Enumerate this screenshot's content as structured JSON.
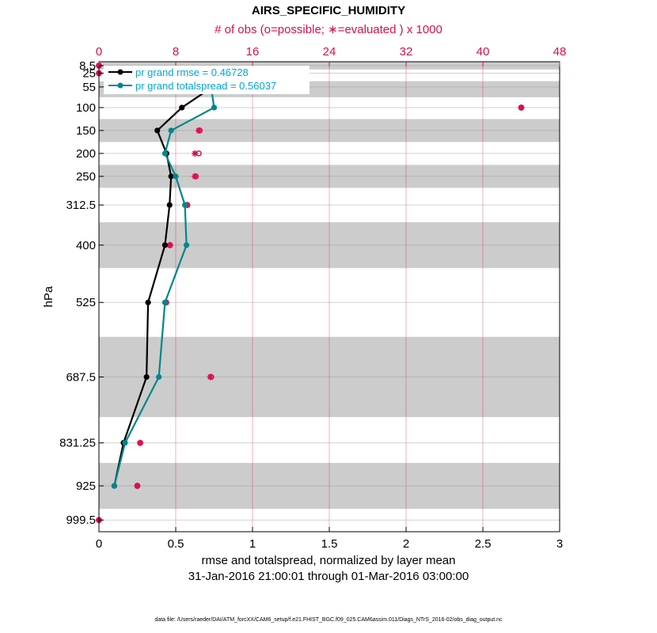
{
  "chart_data": {
    "type": "line",
    "title": "AIRS_SPECIFIC_HUMIDITY",
    "top_axis_label": "# of obs (o=possible; ∗=evaluated ) x 1000",
    "xlabel": "rmse and totalspread, normalized by layer mean",
    "xlabel2": "31-Jan-2016 21:00:01 through 01-Mar-2016 03:00:00",
    "ylabel": "hPa",
    "footnote": "data file: /Users/raeder/DAI/ATM_forcXX/CAM6_setup/f.e21.FHIST_BGC.f09_025.CAM6assim.011/Diags_NTrS_2016-02/obs_diag_output.nc",
    "xlim": [
      0,
      3
    ],
    "xticks": [
      0,
      0.5,
      1,
      1.5,
      2,
      2.5,
      3
    ],
    "xtick_labels": [
      "0",
      "0.5",
      "1",
      "1.5",
      "2",
      "2.5",
      "3"
    ],
    "top_xlim": [
      0,
      48
    ],
    "top_xticks": [
      0,
      8,
      16,
      24,
      32,
      40,
      48
    ],
    "top_xtick_labels": [
      "0",
      "8",
      "16",
      "24",
      "32",
      "40",
      "48"
    ],
    "y_levels": [
      8.5,
      25,
      55,
      100,
      150,
      200,
      250,
      312.5,
      400,
      525,
      687.5,
      831.25,
      925,
      999.5
    ],
    "ytick_labels": [
      "8.5",
      "25",
      "55",
      "100",
      "150",
      "200",
      "250",
      "312.5",
      "400",
      "525",
      "687.5",
      "831.25",
      "925",
      "999.5"
    ],
    "ylim": [
      0,
      1025
    ],
    "shaded_layers": [
      [
        0,
        17
      ],
      [
        42.5,
        77.5
      ],
      [
        125,
        175
      ],
      [
        225,
        275
      ],
      [
        350,
        450
      ],
      [
        600,
        775
      ],
      [
        875,
        975
      ]
    ],
    "series": [
      {
        "name": "rmse",
        "legend": "pr grand rmse = 0.46728",
        "color": "#000000",
        "levels": [
          55,
          100,
          150,
          200,
          250,
          312.5,
          400,
          525,
          687.5,
          831.25,
          925
        ],
        "values": [
          0.74,
          0.54,
          0.38,
          0.44,
          0.47,
          0.46,
          0.43,
          0.32,
          0.31,
          0.16,
          0.1
        ]
      },
      {
        "name": "totalspread",
        "legend": "pr grand totalspread = 0.56037",
        "color": "#00868B",
        "levels": [
          55,
          100,
          150,
          200,
          250,
          312.5,
          400,
          525,
          687.5,
          831.25,
          925
        ],
        "values": [
          0.73,
          0.75,
          0.47,
          0.43,
          0.5,
          0.56,
          0.57,
          0.43,
          0.39,
          0.17,
          0.1
        ]
      }
    ],
    "obs_counts": {
      "color": "#D7104E",
      "levels": [
        8.5,
        25,
        55,
        100,
        150,
        200,
        250,
        312.5,
        400,
        525,
        687.5,
        831.25,
        925,
        999.5
      ],
      "possible": [
        0,
        0,
        11.2,
        44,
        10.5,
        10.4,
        10.1,
        9.2,
        7.4,
        7.0,
        11.7,
        4.3,
        4.0,
        0
      ],
      "evaluated": [
        0,
        0,
        11.2,
        44,
        10.4,
        10.0,
        10.0,
        9.2,
        7.4,
        7.0,
        11.6,
        4.3,
        4.0,
        0
      ]
    }
  }
}
